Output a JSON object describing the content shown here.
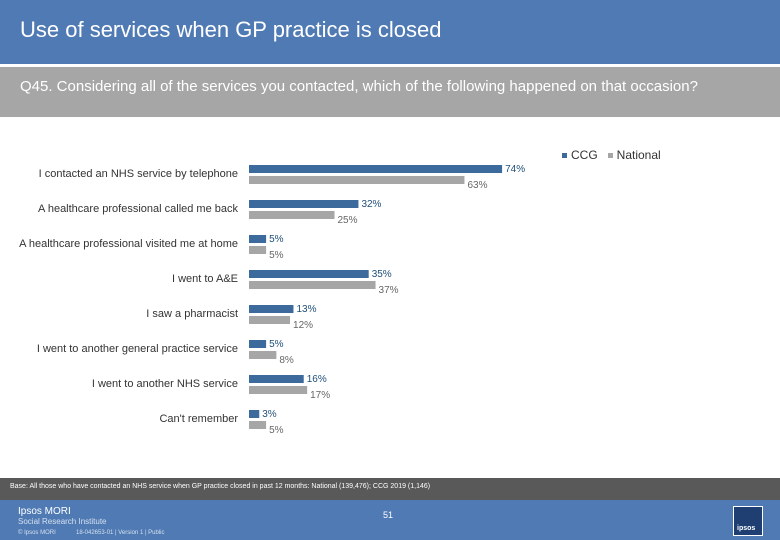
{
  "header": {
    "title": "Use of services when GP practice is closed"
  },
  "question": {
    "text": "Q45. Considering all of the services you contacted, which of the following happened on that occasion?"
  },
  "legend": [
    {
      "name": "CCG",
      "color": "#3c6a9c"
    },
    {
      "name": "National",
      "color": "#a6a6a6"
    }
  ],
  "chart_data": {
    "type": "bar",
    "orientation": "horizontal",
    "categories": [
      "I contacted an NHS service by telephone",
      "A healthcare professional called me back",
      "A healthcare professional visited me at home",
      "I went to A&E",
      "I saw a pharmacist",
      "I went to another general practice service",
      "I  went to another NHS service",
      "Can't remember"
    ],
    "series": [
      {
        "name": "CCG",
        "values": [
          74,
          32,
          5,
          35,
          13,
          5,
          16,
          3
        ],
        "labels": [
          "74%",
          "32%",
          "5%",
          "35%",
          "13%",
          "5%",
          "16%",
          "3%"
        ]
      },
      {
        "name": "National",
        "values": [
          63,
          25,
          5,
          37,
          12,
          8,
          17,
          5
        ],
        "labels": [
          "63%",
          "25%",
          "5%",
          "37%",
          "12%",
          "8%",
          "17%",
          "5%"
        ]
      }
    ],
    "legend_position": "top-right",
    "grid": false
  },
  "base": {
    "text": "Base: All those who have contacted an NHS service when GP practice closed in past 12 months: National (139,476); CCG 2019 (1,146)"
  },
  "footer": {
    "logo_name": "Ipsos MORI",
    "logo_sub": "Social Research Institute",
    "copyright": "© Ipsos MORI",
    "job": "18-042653-01 | Version 1 | Public",
    "page": "51",
    "brand_logo": "ipsos"
  }
}
